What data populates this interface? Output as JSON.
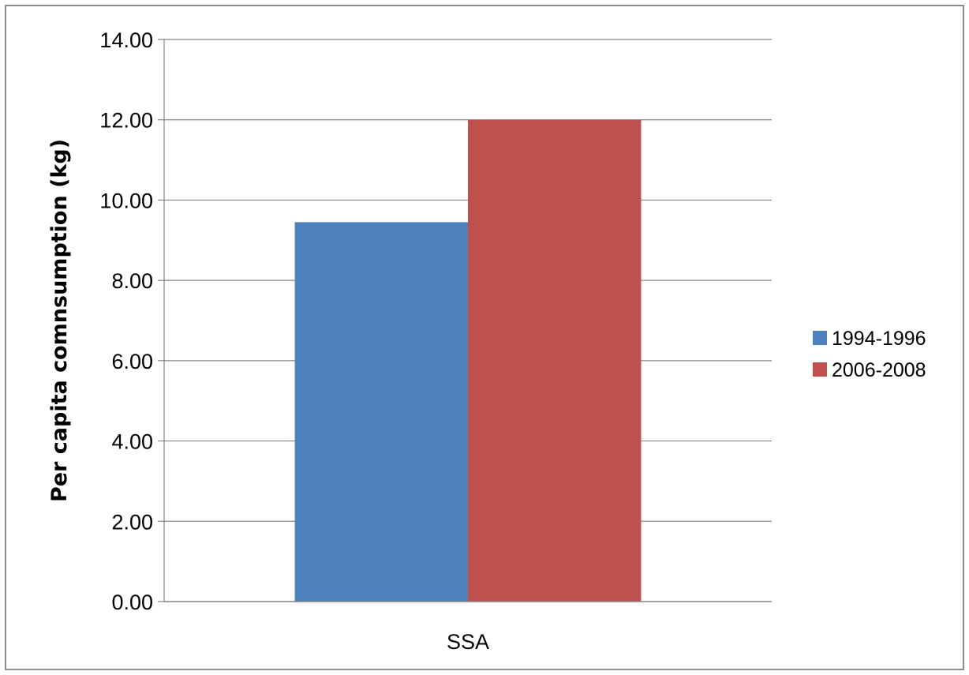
{
  "chart_data": {
    "type": "bar",
    "categories": [
      "SSA"
    ],
    "series": [
      {
        "name": "1994-1996",
        "values": [
          9.45
        ],
        "color": "#4f81bd"
      },
      {
        "name": "2006-2008",
        "values": [
          12.0
        ],
        "color": "#c0504d"
      }
    ],
    "title": "",
    "xlabel": "",
    "ylabel": "Per capita comnsumption (kg)",
    "ylim": [
      0,
      14
    ],
    "yticks": [
      "0.00",
      "2.00",
      "4.00",
      "6.00",
      "8.00",
      "10.00",
      "12.00",
      "14.00"
    ],
    "grid": true,
    "legend_position": "right"
  }
}
